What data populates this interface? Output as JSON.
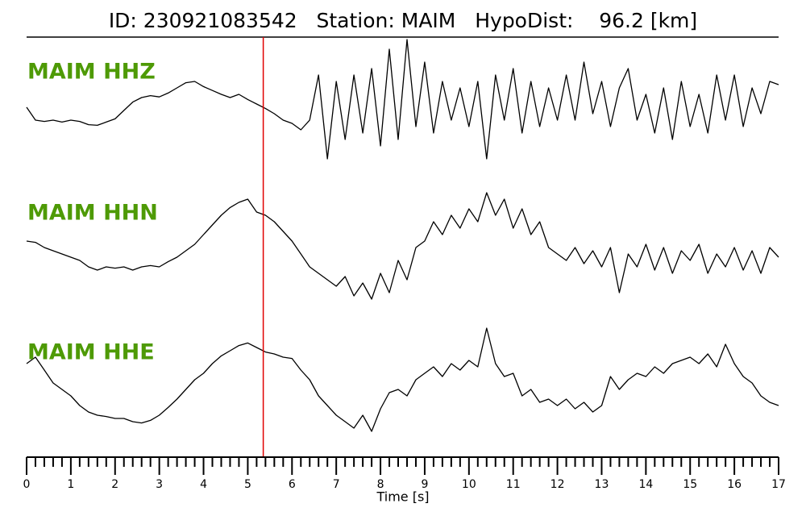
{
  "chart_data": {
    "type": "seismogram",
    "title": "ID: 230921083542   Station: MAIM   HypoDist:    96.2 [km]",
    "xlabel": "Time [s]",
    "xlim": [
      0,
      17
    ],
    "xticks": [
      0,
      1,
      2,
      3,
      4,
      5,
      6,
      7,
      8,
      9,
      10,
      11,
      12,
      13,
      14,
      15,
      16,
      17
    ],
    "ylim": [
      -1,
      1
    ],
    "label_color": "#4e9a06",
    "vline": {
      "x": 5.35,
      "color": "#e00000"
    },
    "x": [
      0,
      0.2,
      0.4,
      0.6,
      0.8,
      1,
      1.2,
      1.4,
      1.6,
      1.8,
      2,
      2.2,
      2.4,
      2.6,
      2.8,
      3,
      3.2,
      3.4,
      3.6,
      3.8,
      4,
      4.2,
      4.4,
      4.6,
      4.8,
      5,
      5.2,
      5.4,
      5.6,
      5.8,
      6,
      6.2,
      6.4,
      6.6,
      6.8,
      7,
      7.2,
      7.4,
      7.6,
      7.8,
      8,
      8.2,
      8.4,
      8.6,
      8.8,
      9,
      9.2,
      9.4,
      9.6,
      9.8,
      10,
      10.2,
      10.4,
      10.6,
      10.8,
      11,
      11.2,
      11.4,
      11.6,
      11.8,
      12,
      12.2,
      12.4,
      12.6,
      12.8,
      13,
      13.2,
      13.4,
      13.6,
      13.8,
      14,
      14.2,
      14.4,
      14.6,
      14.8,
      15,
      15.2,
      15.4,
      15.6,
      15.8,
      16,
      16.2,
      16.4,
      16.6,
      16.8,
      17
    ],
    "series": [
      {
        "name": "MAIM HHZ",
        "color": "#000000",
        "values": [
          -0.1,
          -0.3,
          -0.32,
          -0.3,
          -0.33,
          -0.3,
          -0.32,
          -0.37,
          -0.38,
          -0.33,
          -0.28,
          -0.15,
          -0.02,
          0.05,
          0.08,
          0.06,
          0.12,
          0.2,
          0.28,
          0.3,
          0.22,
          0.16,
          0.1,
          0.05,
          0.1,
          0.02,
          -0.05,
          -0.12,
          -0.2,
          -0.3,
          -0.35,
          -0.45,
          -0.3,
          0.4,
          -0.9,
          0.3,
          -0.6,
          0.4,
          -0.5,
          0.5,
          -0.7,
          0.8,
          -0.6,
          0.95,
          -0.4,
          0.6,
          -0.5,
          0.3,
          -0.3,
          0.2,
          -0.4,
          0.3,
          -0.9,
          0.4,
          -0.3,
          0.5,
          -0.5,
          0.3,
          -0.4,
          0.2,
          -0.3,
          0.4,
          -0.3,
          0.6,
          -0.2,
          0.3,
          -0.4,
          0.2,
          0.5,
          -0.3,
          0.1,
          -0.5,
          0.2,
          -0.6,
          0.3,
          -0.4,
          0.1,
          -0.5,
          0.4,
          -0.3,
          0.4,
          -0.4,
          0.2,
          -0.2,
          0.3,
          0.25
        ]
      },
      {
        "name": "MAIM HHN",
        "color": "#000000",
        "values": [
          0.2,
          0.18,
          0.1,
          0.05,
          0.0,
          -0.05,
          -0.1,
          -0.2,
          -0.25,
          -0.2,
          -0.22,
          -0.2,
          -0.25,
          -0.2,
          -0.18,
          -0.2,
          -0.12,
          -0.05,
          0.05,
          0.15,
          0.3,
          0.45,
          0.6,
          0.72,
          0.8,
          0.85,
          0.65,
          0.6,
          0.5,
          0.35,
          0.2,
          0.0,
          -0.2,
          -0.3,
          -0.4,
          -0.5,
          -0.35,
          -0.65,
          -0.45,
          -0.7,
          -0.3,
          -0.6,
          -0.1,
          -0.4,
          0.1,
          0.2,
          0.5,
          0.3,
          0.6,
          0.4,
          0.7,
          0.5,
          0.95,
          0.6,
          0.85,
          0.4,
          0.7,
          0.3,
          0.5,
          0.1,
          0.0,
          -0.1,
          0.1,
          -0.15,
          0.05,
          -0.2,
          0.1,
          -0.6,
          0.0,
          -0.2,
          0.15,
          -0.25,
          0.1,
          -0.3,
          0.05,
          -0.1,
          0.15,
          -0.3,
          0.0,
          -0.2,
          0.1,
          -0.25,
          0.05,
          -0.3,
          0.1,
          -0.05
        ]
      },
      {
        "name": "MAIM HHE",
        "color": "#000000",
        "values": [
          0.3,
          0.4,
          0.2,
          0.0,
          -0.1,
          -0.2,
          -0.35,
          -0.45,
          -0.5,
          -0.52,
          -0.55,
          -0.55,
          -0.6,
          -0.62,
          -0.58,
          -0.5,
          -0.38,
          -0.25,
          -0.1,
          0.05,
          0.15,
          0.3,
          0.42,
          0.5,
          0.58,
          0.62,
          0.55,
          0.48,
          0.45,
          0.4,
          0.38,
          0.2,
          0.05,
          -0.2,
          -0.35,
          -0.5,
          -0.6,
          -0.7,
          -0.5,
          -0.75,
          -0.4,
          -0.15,
          -0.1,
          -0.2,
          0.05,
          0.15,
          0.25,
          0.1,
          0.3,
          0.2,
          0.35,
          0.25,
          0.85,
          0.3,
          0.1,
          0.15,
          -0.2,
          -0.1,
          -0.3,
          -0.25,
          -0.35,
          -0.25,
          -0.4,
          -0.3,
          -0.45,
          -0.35,
          0.1,
          -0.1,
          0.05,
          0.15,
          0.1,
          0.25,
          0.15,
          0.3,
          0.35,
          0.4,
          0.3,
          0.45,
          0.25,
          0.6,
          0.3,
          0.1,
          0.0,
          -0.2,
          -0.3,
          -0.35
        ]
      }
    ]
  }
}
